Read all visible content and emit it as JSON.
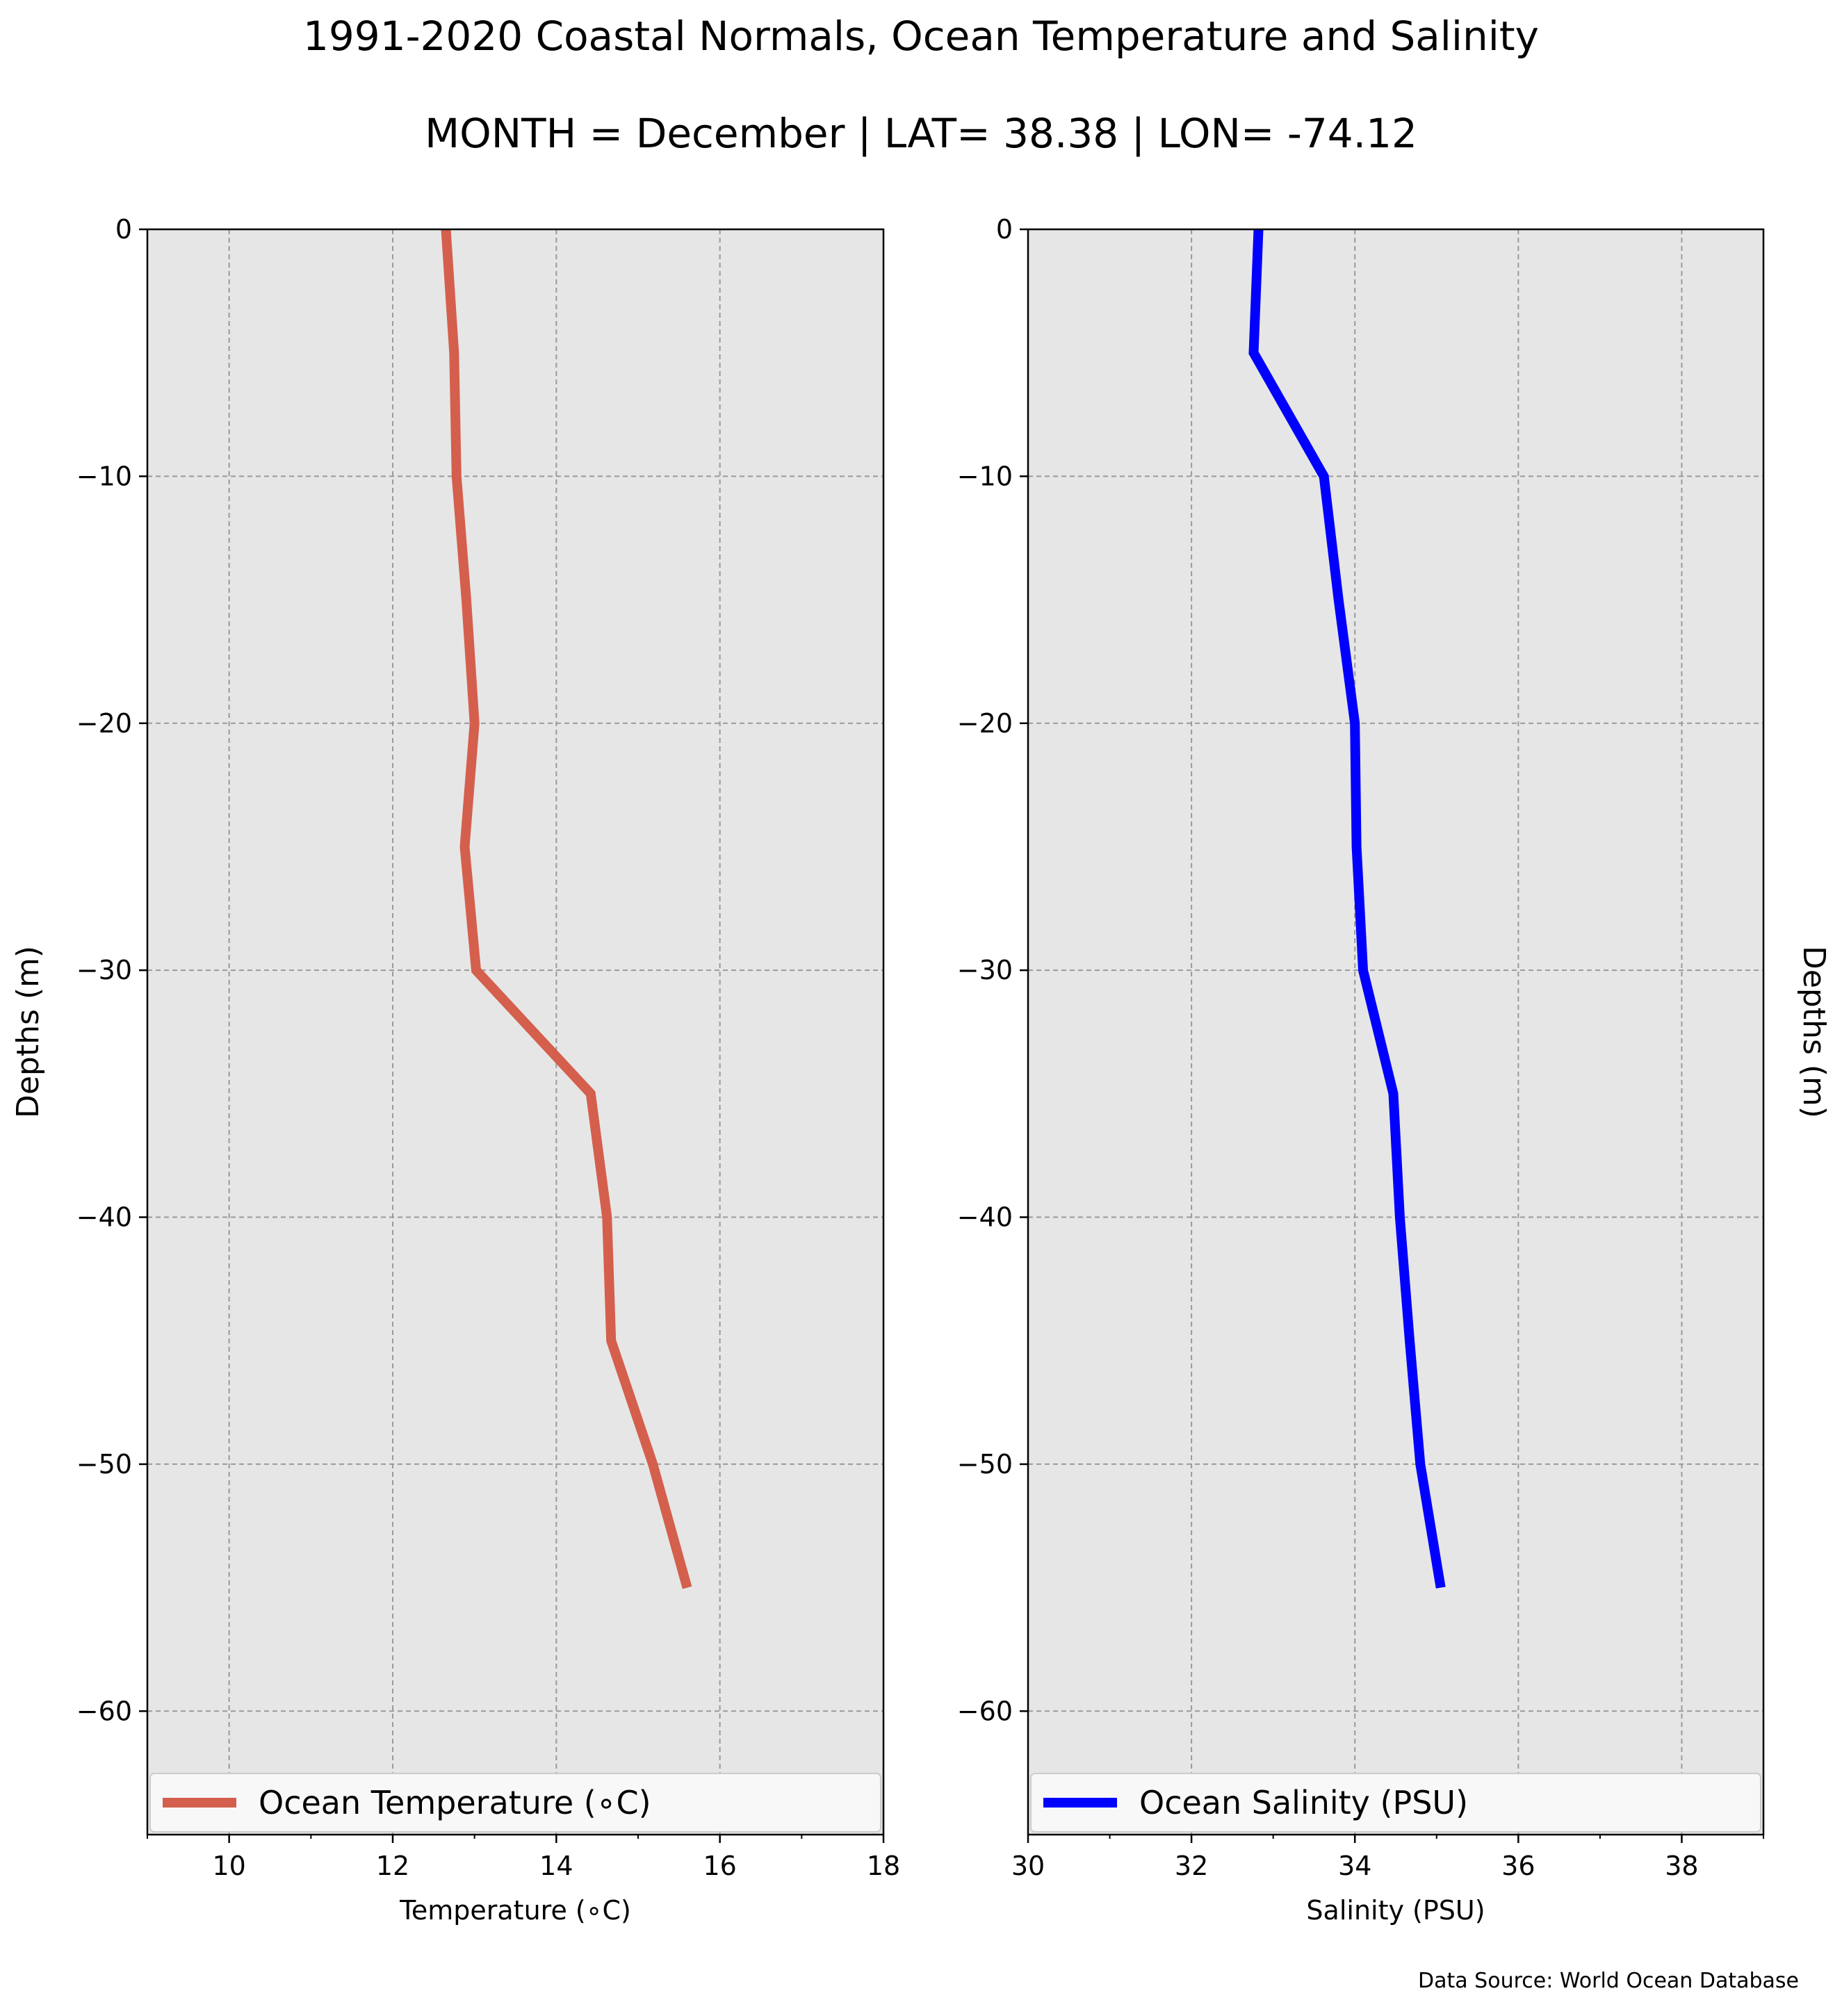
{
  "title": "1991-2020 Coastal Normals, Ocean Temperature and Salinity",
  "subtitle": "MONTH = December | LAT= 38.38 | LON= -74.12",
  "source": "Data Source: World Ocean Database",
  "chart_data": [
    {
      "type": "line",
      "xlabel": "Temperature (∘C)",
      "ylabel": "Depths (m)",
      "xlim": [
        9,
        18
      ],
      "ylim": [
        -65,
        0
      ],
      "xticks": [
        10,
        12,
        14,
        16,
        18
      ],
      "yticks": [
        0,
        -10,
        -20,
        -30,
        -40,
        -50,
        -60
      ],
      "grid": true,
      "legend_placement": "bottom",
      "series": [
        {
          "name": "Ocean Temperature (∘C)",
          "color": "#d45f4c",
          "x": [
            12.65,
            12.75,
            12.78,
            12.9,
            13.0,
            12.88,
            13.02,
            14.42,
            14.62,
            14.67,
            15.18,
            15.6
          ],
          "y": [
            0,
            -5,
            -10,
            -15,
            -20,
            -25,
            -30,
            -35,
            -40,
            -45,
            -50,
            -55
          ]
        }
      ]
    },
    {
      "type": "line",
      "xlabel": "Salinity (PSU)",
      "ylabel": "Depths (m)",
      "xlim": [
        30,
        39
      ],
      "ylim": [
        -65,
        0
      ],
      "xticks": [
        30,
        32,
        34,
        36,
        38
      ],
      "yticks": [
        0,
        -10,
        -20,
        -30,
        -40,
        -50,
        -60
      ],
      "grid": true,
      "legend_placement": "bottom",
      "series": [
        {
          "name": "Ocean Salinity (PSU)",
          "color": "#0000ff",
          "x": [
            32.82,
            32.76,
            33.62,
            33.8,
            34.0,
            34.02,
            34.1,
            34.47,
            34.55,
            34.67,
            34.8,
            35.05
          ],
          "y": [
            0,
            -5,
            -10,
            -15,
            -20,
            -25,
            -30,
            -35,
            -40,
            -45,
            -50,
            -55
          ]
        }
      ]
    }
  ]
}
